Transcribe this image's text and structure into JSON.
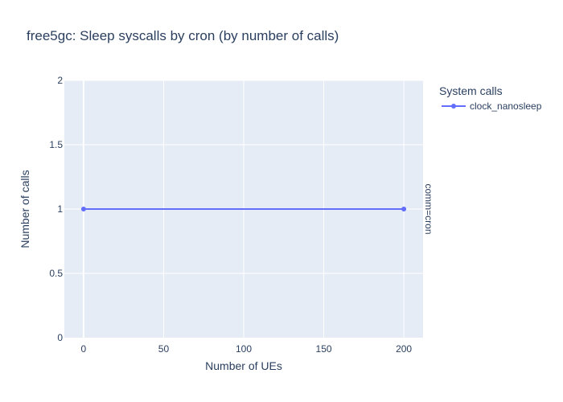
{
  "chart_data": {
    "type": "line",
    "title": "free5gc: Sleep syscalls by cron (by number of calls)",
    "xlabel": "Number of UEs",
    "ylabel": "Number of calls",
    "xlim": [
      -12,
      212
    ],
    "ylim": [
      0,
      2
    ],
    "x_ticks": [
      0,
      50,
      100,
      150,
      200
    ],
    "y_ticks": [
      0,
      0.5,
      1,
      1.5,
      2
    ],
    "x_tick_labels": [
      "0",
      "50",
      "100",
      "150",
      "200"
    ],
    "y_tick_labels": [
      "0",
      "0.5",
      "1",
      "1.5",
      "2"
    ],
    "facet_label": "comm=cron",
    "legend": {
      "title": "System calls",
      "position": "top-right"
    },
    "series": [
      {
        "name": "clock_nanosleep",
        "color": "#636efa",
        "x": [
          0,
          200
        ],
        "y": [
          1,
          1
        ]
      }
    ],
    "plot_bg": "#e5ecf6",
    "grid": true,
    "grid_color": "#ffffff"
  }
}
